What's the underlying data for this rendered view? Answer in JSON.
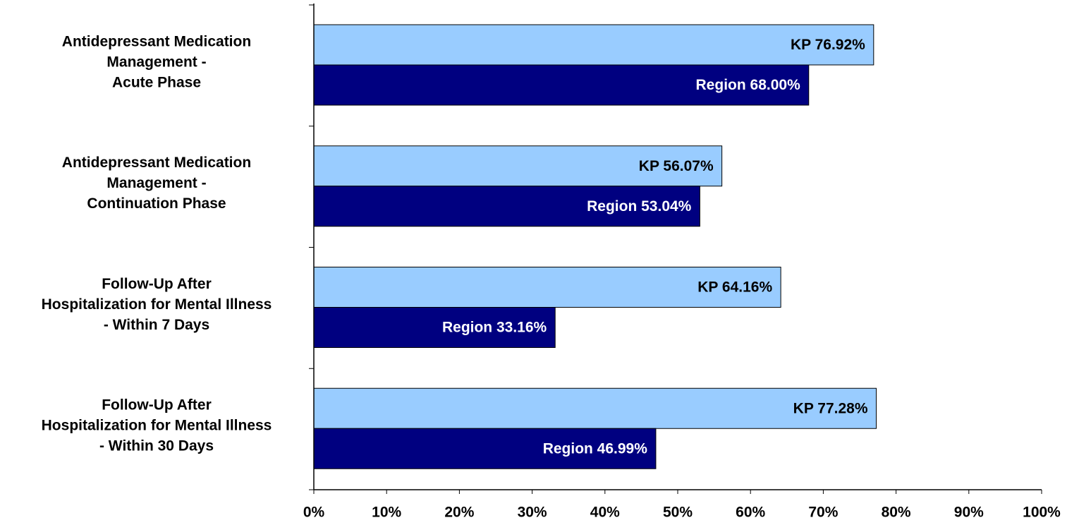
{
  "chart_data": {
    "type": "hbar",
    "categories": [
      [
        "Antidepressant Medication",
        "Management -",
        "Acute Phase"
      ],
      [
        "Antidepressant Medication",
        "Management -",
        "Continuation Phase"
      ],
      [
        "Follow-Up After",
        "Hospitalization for Mental Illness",
        "- Within 7 Days"
      ],
      [
        "Follow-Up After",
        "Hospitalization for Mental Illness",
        "- Within 30 Days"
      ]
    ],
    "series": [
      {
        "color": "#99ccff",
        "label_color": "#000000",
        "values": [
          76.92,
          56.07,
          64.16,
          77.28
        ],
        "value_labels": [
          "KP 76.92%",
          "KP 56.07%",
          "KP 64.16%",
          "KP 77.28%"
        ]
      },
      {
        "color": "#000080",
        "label_color": "#ffffff",
        "values": [
          68.0,
          53.04,
          33.16,
          46.99
        ],
        "value_labels": [
          "Region 68.00%",
          "Region 53.04%",
          "Region 33.16%",
          "Region 46.99%"
        ]
      }
    ],
    "xlim": [
      0,
      100
    ],
    "xticks": [
      {
        "value": 0,
        "label": "0%"
      },
      {
        "value": 10,
        "label": "10%"
      },
      {
        "value": 20,
        "label": "20%"
      },
      {
        "value": 30,
        "label": "30%"
      },
      {
        "value": 40,
        "label": "40%"
      },
      {
        "value": 50,
        "label": "50%"
      },
      {
        "value": 60,
        "label": "60%"
      },
      {
        "value": 70,
        "label": "70%"
      },
      {
        "value": 80,
        "label": "80%"
      },
      {
        "value": 90,
        "label": "90%"
      },
      {
        "value": 100,
        "label": "100%"
      }
    ],
    "grid": false
  }
}
